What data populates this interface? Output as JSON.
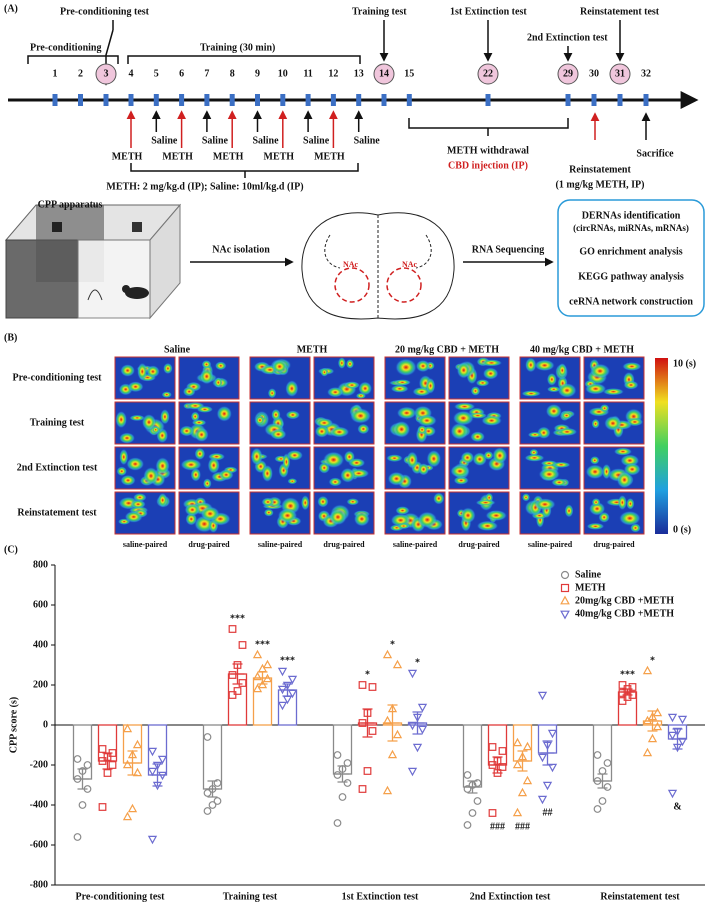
{
  "panel_a": {
    "label": "(A)",
    "pre_conditioning_test": "Pre-conditioning test",
    "pre_conditioning": "Pre-conditioning",
    "training": "Training  (30 min)",
    "training_test": "Training test",
    "extinction_1": "1st Extinction test",
    "extinction_2": "2nd Extinction test",
    "reinstatement_test": "Reinstatement test",
    "days": [
      1,
      2,
      3,
      4,
      5,
      6,
      7,
      8,
      9,
      10,
      11,
      12,
      13,
      14,
      15,
      22,
      29,
      30,
      31,
      32
    ],
    "circled_days": [
      3,
      14,
      22,
      29,
      31
    ],
    "meth": "METH",
    "saline": "Saline",
    "dose": "METH: 2 mg/kg.d (IP); Saline: 10ml/kg.d (IP)",
    "withdrawal": "METH withdrawal",
    "cbd": "CBD injection (IP)",
    "reinstatement": "Reinstatement",
    "reinstatement_dose": "(1 mg/kg METH, IP)",
    "sacrifice": "Sacrifice",
    "apparatus": "CPP apparatus",
    "nac_isolation": "NAc isolation",
    "rna_seq": "RNA Sequencing",
    "nac": "NAc",
    "analysis": [
      "DERNAs identification",
      "(circRNAs, miRNAs, mRNAs)",
      "GO enrichment analysis",
      "KEGG pathway analysis",
      "ceRNA network construction"
    ]
  },
  "panel_b": {
    "label": "(B)",
    "groups": [
      "Saline",
      "METH",
      "20 mg/kg CBD + METH",
      "40 mg/kg CBD + METH"
    ],
    "rows": [
      "Pre-conditioning test",
      "Training test",
      "2nd Extinction test",
      "Reinstatement test"
    ],
    "columns": [
      "saline-paired",
      "drug-paired"
    ],
    "colorbar": [
      "10 (s)",
      "0 (s)"
    ]
  },
  "chart_data": {
    "type": "bar",
    "panel_label": "(C)",
    "ylabel": "CPP score (s)",
    "categories": [
      "Pre-conditioning test",
      "Training test",
      "1st Extinction test",
      "2nd Extinction test",
      "Reinstatement test"
    ],
    "ylim": [
      -800,
      800
    ],
    "yticks": [
      -800,
      -600,
      -400,
      -200,
      0,
      200,
      400,
      600,
      800
    ],
    "series": [
      {
        "name": "Saline",
        "color": "#8a8a8a",
        "marker": "circle",
        "values": [
          -270,
          -320,
          -245,
          -310,
          -280
        ],
        "errors": [
          50,
          40,
          40,
          30,
          35
        ],
        "points": [
          [
            -560,
            -400,
            -320,
            -270,
            -230,
            -200,
            -170
          ],
          [
            -430,
            -400,
            -380,
            -340,
            -320,
            -290,
            -60
          ],
          [
            -490,
            -360,
            -290,
            -250,
            -220,
            -190,
            -150
          ],
          [
            -500,
            -440,
            -380,
            -320,
            -300,
            -290,
            -250
          ],
          [
            -420,
            -380,
            -310,
            -280,
            -230,
            -190,
            -150
          ]
        ],
        "annotations_above": [
          null,
          null,
          null,
          null,
          null
        ],
        "annotations_below": [
          null,
          null,
          null,
          null,
          null
        ]
      },
      {
        "name": "METH",
        "color": "#e03a3a",
        "marker": "square",
        "values": [
          -180,
          255,
          10,
          -200,
          165
        ],
        "errors": [
          40,
          50,
          70,
          40,
          15
        ],
        "points": [
          [
            -410,
            -240,
            -200,
            -180,
            -160,
            -140,
            -120
          ],
          [
            150,
            170,
            210,
            250,
            300,
            400,
            480
          ],
          [
            -320,
            -230,
            -30,
            10,
            60,
            190,
            200
          ],
          [
            -440,
            -240,
            -210,
            -200,
            -180,
            -130,
            -110
          ],
          [
            120,
            140,
            150,
            160,
            180,
            190,
            200
          ]
        ],
        "annotations_above": [
          null,
          "***",
          "*",
          null,
          "***"
        ],
        "annotations_below": [
          null,
          null,
          null,
          "###",
          null
        ]
      },
      {
        "name": "20mg/kg CBD +METH",
        "color": "#f5a04a",
        "marker": "triangle-up",
        "values": [
          -190,
          235,
          10,
          -180,
          20
        ],
        "errors": [
          60,
          30,
          90,
          50,
          50
        ],
        "points": [
          [
            -460,
            -420,
            -240,
            -200,
            -150,
            -100,
            -20
          ],
          [
            180,
            200,
            230,
            240,
            280,
            300,
            350
          ],
          [
            -330,
            -150,
            -50,
            20,
            80,
            300,
            350
          ],
          [
            -440,
            -340,
            -280,
            -200,
            -160,
            -110,
            -90
          ],
          [
            -140,
            -70,
            -10,
            20,
            40,
            60,
            270
          ]
        ],
        "annotations_above": [
          null,
          "***",
          "*",
          null,
          "*"
        ],
        "annotations_below": [
          null,
          null,
          null,
          "###",
          null
        ]
      },
      {
        "name": "40mg/kg CBD +METH",
        "color": "#6c6cd0",
        "marker": "triangle-down",
        "values": [
          -250,
          175,
          10,
          -140,
          -70
        ],
        "errors": [
          55,
          30,
          55,
          60,
          50
        ],
        "points": [
          [
            -570,
            -300,
            -250,
            -230,
            -200,
            -170,
            -130
          ],
          [
            100,
            130,
            160,
            180,
            200,
            230,
            270
          ],
          [
            -230,
            -110,
            -20,
            0,
            40,
            90,
            260
          ],
          [
            -370,
            -300,
            -210,
            -160,
            -100,
            -40,
            150
          ],
          [
            -340,
            -110,
            -80,
            -50,
            -30,
            30,
            40
          ]
        ],
        "annotations_above": [
          null,
          "***",
          "*",
          null,
          null
        ],
        "annotations_below": [
          null,
          null,
          null,
          "##",
          "&"
        ]
      }
    ]
  }
}
